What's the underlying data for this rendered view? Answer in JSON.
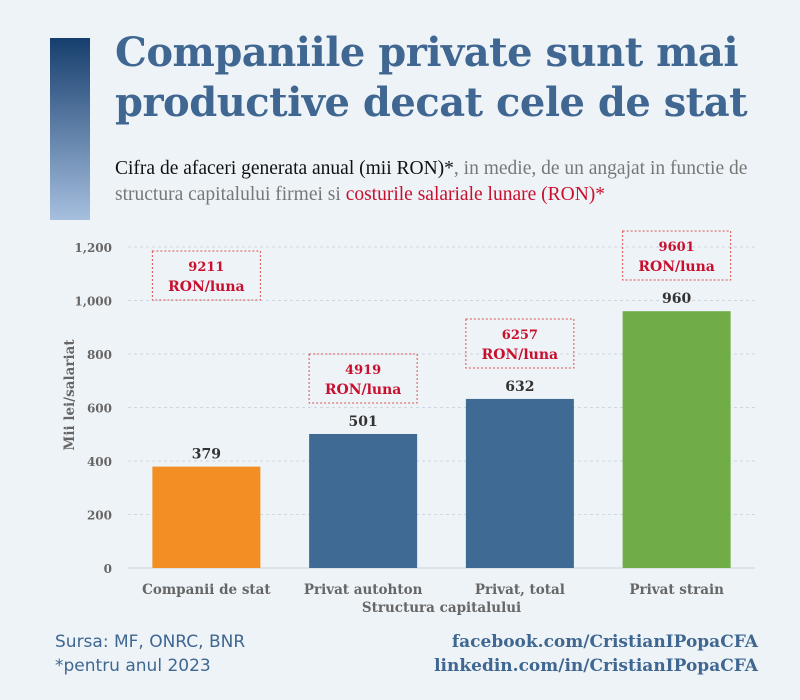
{
  "title": "Companiile private sunt mai productive decat cele de stat",
  "subtitle": {
    "part1": "Cifra de afaceri generata anual (mii RON)*",
    "part2": ", in medie, de un angajat in functie de structura capitalului firmei si ",
    "part3": "costurile salariale lunare (RON)*"
  },
  "chart_data": {
    "type": "bar",
    "categories": [
      "Companii de stat",
      "Privat autohton",
      "Privat, total",
      "Privat strain"
    ],
    "values": [
      379,
      501,
      632,
      960
    ],
    "value_labels": [
      "379",
      "501",
      "632",
      "960"
    ],
    "colors": [
      "#f28e23",
      "#3f6a94",
      "#3f6a94",
      "#71ad47"
    ],
    "annotations": [
      {
        "value": "9211",
        "unit": "RON/luna"
      },
      {
        "value": "4919",
        "unit": "RON/luna"
      },
      {
        "value": "6257",
        "unit": "RON/luna"
      },
      {
        "value": "9601",
        "unit": "RON/luna"
      }
    ],
    "xlabel": "Structura capitalului",
    "ylabel": "Mii lei/salariat",
    "ylim": [
      0,
      1200
    ],
    "yticks": [
      0,
      200,
      400,
      600,
      800,
      1000,
      1200
    ],
    "ytick_labels": [
      "0",
      "200",
      "400",
      "600",
      "800",
      "1,000",
      "1,200"
    ],
    "grid": true
  },
  "footer": {
    "source": "Sursa: MF, ONRC, BNR",
    "note": "*pentru anul 2023",
    "facebook": "facebook.com/CristianIPopaCFA",
    "linkedin": "linkedin.com/in/CristianIPopaCFA"
  }
}
